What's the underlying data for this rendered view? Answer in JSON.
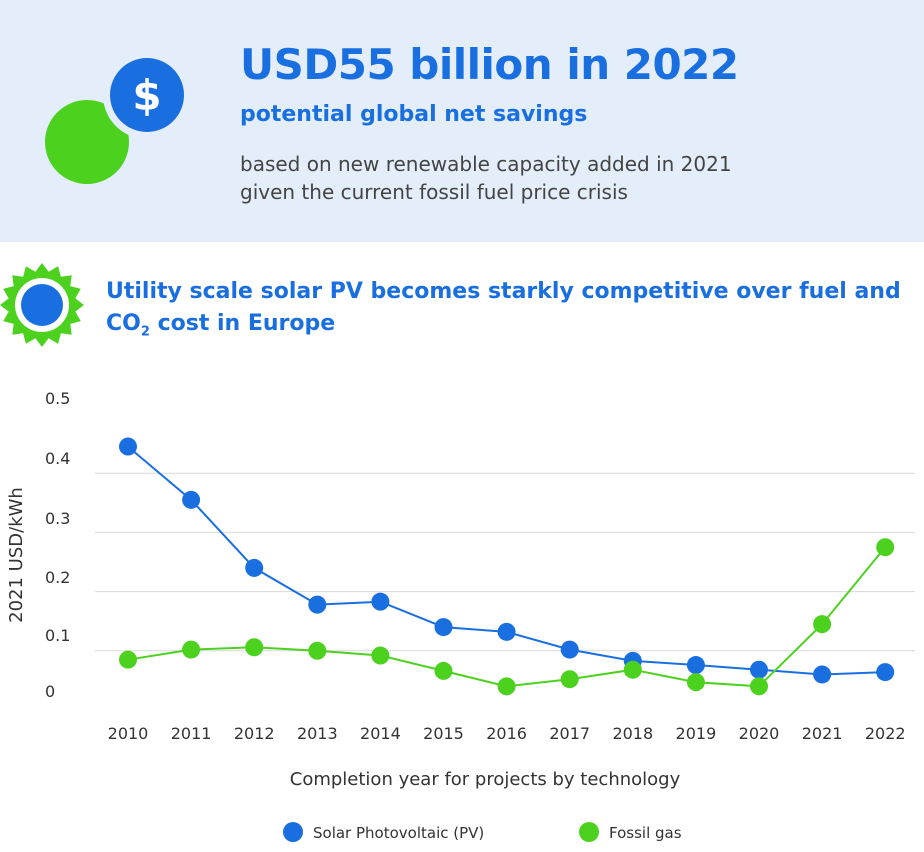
{
  "header": {
    "headline": "USD55 billion in 2022",
    "subheadline": "potential global net savings",
    "description_line1": "based on new renewable capacity added in 2021",
    "description_line2": "given the current fossil fuel price crisis",
    "icon": "dollar-coin-icon"
  },
  "section": {
    "title_part1": "Utility scale solar PV becomes starkly competitive over fuel and CO",
    "title_sub": "2",
    "title_part2": " cost in Europe",
    "icon": "sun-icon"
  },
  "colors": {
    "solar": "#1a6fe0",
    "gas": "#4cd11f",
    "banner": "#e3eefa"
  },
  "chart_data": {
    "type": "line",
    "categories": [
      "2010",
      "2011",
      "2012",
      "2013",
      "2014",
      "2015",
      "2016",
      "2017",
      "2018",
      "2019",
      "2020",
      "2021",
      "2022"
    ],
    "series": [
      {
        "name": "Solar Photovoltaic (PV)",
        "values": [
          0.445,
          0.355,
          0.24,
          0.178,
          0.183,
          0.14,
          0.132,
          0.102,
          0.083,
          0.076,
          0.068,
          0.06,
          0.064
        ]
      },
      {
        "name": "Fossil gas",
        "values": [
          0.085,
          0.102,
          0.106,
          0.1,
          0.092,
          0.066,
          0.04,
          0.052,
          0.068,
          0.047,
          0.04,
          0.145,
          0.275
        ]
      }
    ],
    "ylabel": "2021 USD/kWh",
    "xlabel": "Completion year for projects by technology",
    "yticks": [
      "0.5",
      "0.4",
      "0.3",
      "0.2",
      "0.1",
      "0"
    ],
    "ylim": [
      0,
      0.5
    ],
    "grid": true,
    "legend_position": "bottom"
  }
}
